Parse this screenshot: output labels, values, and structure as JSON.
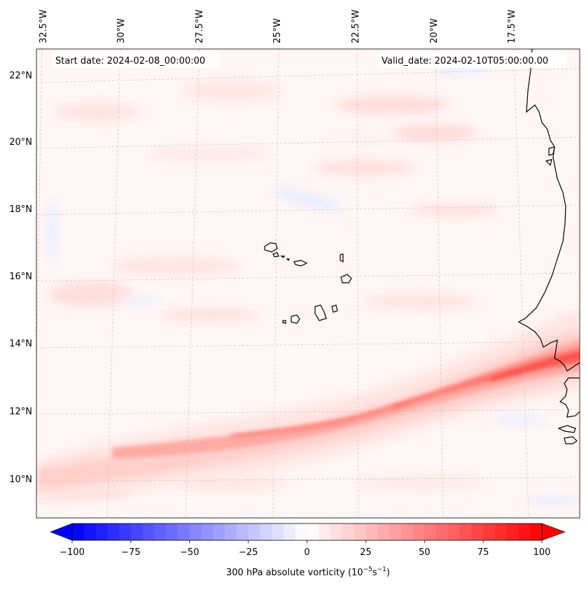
{
  "map": {
    "start_label": "Start date: 2024-02-08_00:00:00",
    "valid_label": "Valid_date: 2024-02-10T05:00:00.00",
    "longitude_labels": [
      "32.5°W",
      "30°W",
      "27.5°W",
      "25°W",
      "22.5°W",
      "20°W",
      "17.5°W"
    ],
    "latitude_labels": [
      "22°N",
      "20°N",
      "18°N",
      "16°N",
      "14°N",
      "12°N",
      "10°N"
    ],
    "field_name": "300 hPa absolute vorticity"
  },
  "colorbar": {
    "label": "300 hPa absolute vorticity (10",
    "label_exp1": "−5",
    "label_mid": "s",
    "label_exp2": "−1",
    "label_end": ")",
    "ticks": [
      "−100",
      "−75",
      "−50",
      "−25",
      "0",
      "25",
      "50",
      "75",
      "100"
    ],
    "min": -100,
    "max": 100,
    "levels": 40,
    "low_color": "#0000ff",
    "high_color": "#ff0000"
  }
}
